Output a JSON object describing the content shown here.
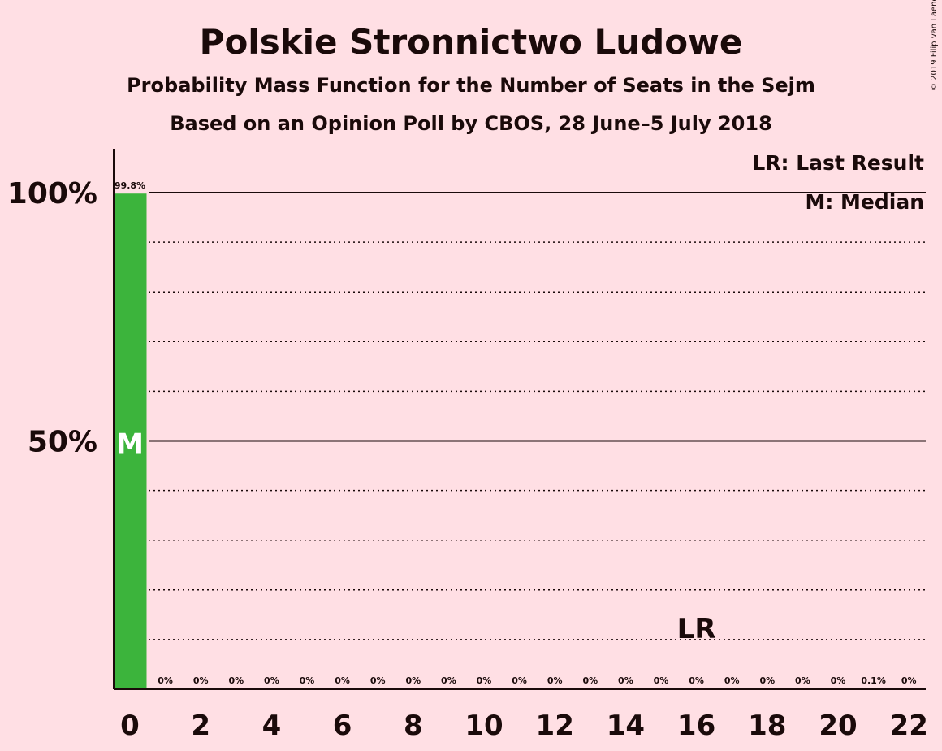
{
  "copyright": "© 2019 Filip van Laenen",
  "chart_data": {
    "type": "bar",
    "title": "Polskie Stronnictwo Ludowe",
    "subtitle": "Probability Mass Function for the Number of Seats in the Sejm",
    "subtitle2": "Based on an Opinion Poll by CBOS, 28 June–5 July 2018",
    "categories": [
      0,
      1,
      2,
      3,
      4,
      5,
      6,
      7,
      8,
      9,
      10,
      11,
      12,
      13,
      14,
      15,
      16,
      17,
      18,
      19,
      20,
      21,
      22
    ],
    "values": [
      99.8,
      0,
      0,
      0,
      0,
      0,
      0,
      0,
      0,
      0,
      0,
      0,
      0,
      0,
      0,
      0,
      0,
      0,
      0,
      0,
      0,
      0.1,
      0
    ],
    "value_labels": [
      "99.8%",
      "0%",
      "0%",
      "0%",
      "0%",
      "0%",
      "0%",
      "0%",
      "0%",
      "0%",
      "0%",
      "0%",
      "0%",
      "0%",
      "0%",
      "0%",
      "0%",
      "0%",
      "0%",
      "0%",
      "0%",
      "0.1%",
      "0%"
    ],
    "x_tick_labels": [
      "0",
      "2",
      "4",
      "6",
      "8",
      "10",
      "12",
      "14",
      "16",
      "18",
      "20",
      "22"
    ],
    "x_tick_values": [
      0,
      2,
      4,
      6,
      8,
      10,
      12,
      14,
      16,
      18,
      20,
      22
    ],
    "y_tick_labels": [
      "50%",
      "100%"
    ],
    "y_tick_values": [
      50,
      100
    ],
    "ylim": [
      0,
      100
    ],
    "grid": true,
    "bar_color": "#3cb43c",
    "median": 0,
    "median_marker": "M",
    "last_result": 16,
    "last_result_marker": "LR",
    "legend": [
      "LR: Last Result",
      "M: Median"
    ],
    "legend_position": "top-right"
  }
}
